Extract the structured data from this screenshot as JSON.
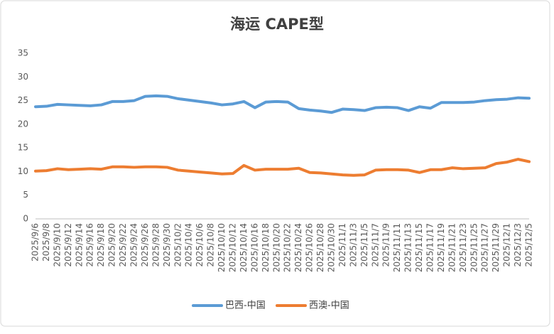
{
  "chart_data": {
    "type": "line",
    "title": "海运 CAPE型",
    "categories": [
      "2025/9/6",
      "2025/9/8",
      "2025/9/10",
      "2025/9/12",
      "2025/9/14",
      "2025/9/16",
      "2025/9/18",
      "2025/9/20",
      "2025/9/22",
      "2025/9/24",
      "2025/9/26",
      "2025/9/28",
      "2025/9/30",
      "2025/10/2",
      "2025/10/4",
      "2025/10/6",
      "2025/10/8",
      "2025/10/10",
      "2025/10/12",
      "2025/10/14",
      "2025/10/16",
      "2025/10/18",
      "2025/10/20",
      "2025/10/22",
      "2025/10/24",
      "2025/10/26",
      "2025/10/28",
      "2025/10/30",
      "2025/11/1",
      "2025/11/3",
      "2025/11/5",
      "2025/11/7",
      "2025/11/9",
      "2025/11/11",
      "2025/11/13",
      "2025/11/15",
      "2025/11/17",
      "2025/11/19",
      "2025/11/21",
      "2025/11/23",
      "2025/11/25",
      "2025/11/27",
      "2025/11/29",
      "2025/12/1",
      "2025/12/3",
      "2025/12/5"
    ],
    "series": [
      {
        "name": "巴西-中国",
        "color": "#5b9bd5",
        "values": [
          23.7,
          23.8,
          24.2,
          24.1,
          24.0,
          23.9,
          24.1,
          24.8,
          24.8,
          25.0,
          25.9,
          26.0,
          25.9,
          25.4,
          25.1,
          24.8,
          24.5,
          24.1,
          24.3,
          24.8,
          23.5,
          24.7,
          24.8,
          24.7,
          23.3,
          23.0,
          22.8,
          22.5,
          23.2,
          23.1,
          22.9,
          23.5,
          23.6,
          23.5,
          22.9,
          23.7,
          23.4,
          24.6,
          24.6,
          24.6,
          24.7,
          25.0,
          25.2,
          25.3,
          25.6,
          25.5
        ]
      },
      {
        "name": "西澳-中国",
        "color": "#ed7d31",
        "values": [
          10.1,
          10.2,
          10.6,
          10.4,
          10.5,
          10.6,
          10.5,
          11.0,
          11.0,
          10.9,
          11.0,
          11.0,
          10.9,
          10.3,
          10.1,
          9.9,
          9.7,
          9.5,
          9.6,
          11.3,
          10.3,
          10.5,
          10.5,
          10.5,
          10.7,
          9.8,
          9.7,
          9.5,
          9.3,
          9.2,
          9.3,
          10.3,
          10.4,
          10.4,
          10.3,
          9.8,
          10.4,
          10.4,
          10.8,
          10.6,
          10.7,
          10.8,
          11.7,
          12.0,
          12.6,
          12.1
        ]
      }
    ],
    "ylim": [
      0,
      35
    ],
    "yticks": [
      0,
      5,
      10,
      15,
      20,
      25,
      30,
      35
    ],
    "grid": false,
    "legend": "bottom"
  }
}
